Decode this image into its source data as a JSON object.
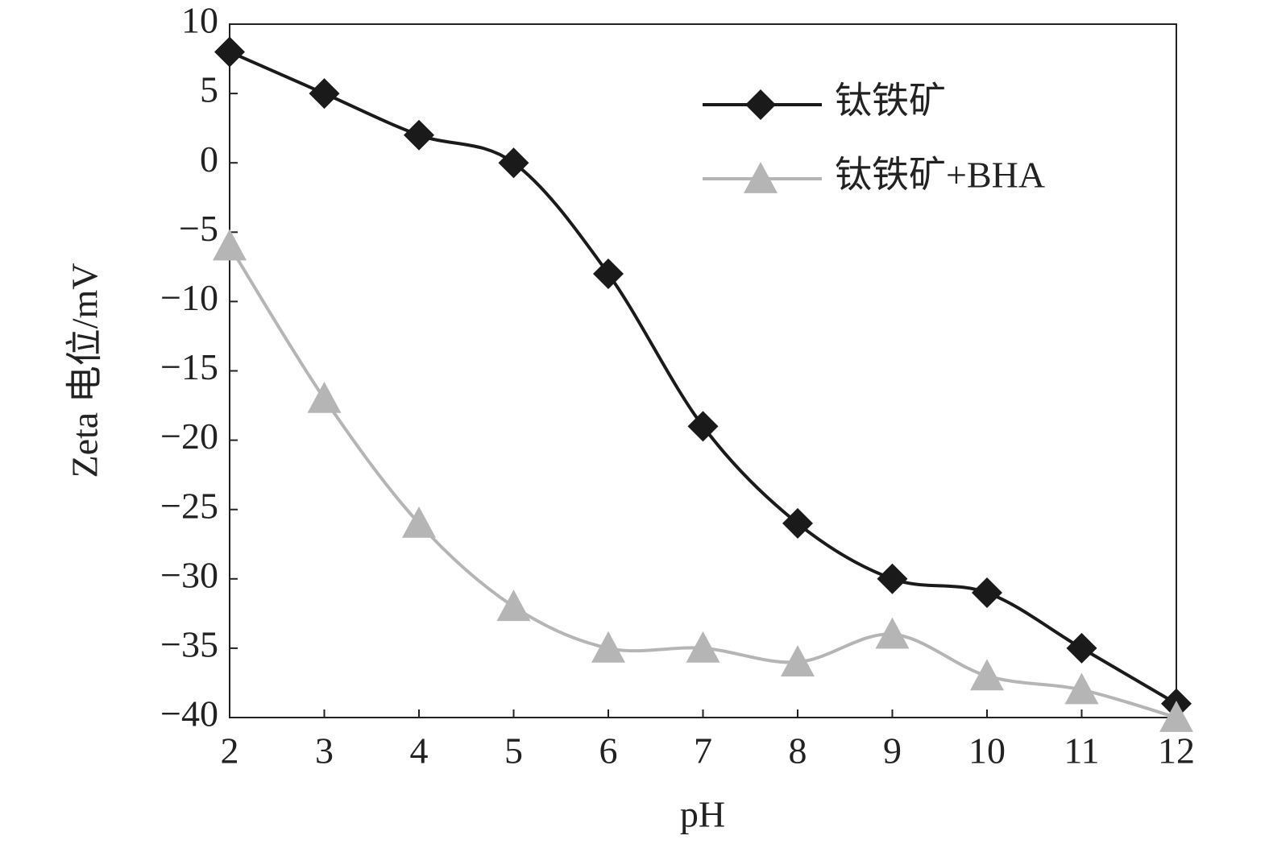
{
  "chart_data": {
    "type": "line",
    "x_label": "pH",
    "y_label": "Zeta 电位/mV",
    "x": [
      2,
      3,
      4,
      5,
      6,
      7,
      8,
      9,
      10,
      11,
      12
    ],
    "series": [
      {
        "name": "钛铁矿",
        "color": "#1a1a1a",
        "marker": "diamond",
        "values": [
          8,
          5,
          2,
          0,
          -8,
          -19,
          -26,
          -30,
          -31,
          -35,
          -39
        ]
      },
      {
        "name": "钛铁矿+BHA",
        "color": "#b5b5b5",
        "marker": "triangle",
        "values": [
          -6,
          -17,
          -26,
          -32,
          -35,
          -35,
          -36,
          -34,
          -37,
          -38,
          -40
        ]
      }
    ],
    "xlim": [
      2,
      12
    ],
    "xticks": [
      2,
      3,
      4,
      5,
      6,
      7,
      8,
      9,
      10,
      11,
      12
    ],
    "ylim": [
      -40,
      10
    ],
    "yticks": [
      10,
      5,
      0,
      {
        "value": -5,
        "label": "−5"
      },
      {
        "value": -10,
        "label": "−10"
      },
      {
        "value": -15,
        "label": "−15"
      },
      {
        "value": -20,
        "label": "−20"
      },
      {
        "value": -25,
        "label": "−25"
      },
      {
        "value": -30,
        "label": "−30"
      },
      {
        "value": -35,
        "label": "−35"
      },
      {
        "value": -40,
        "label": "−40"
      }
    ],
    "legend": "upper right",
    "smooth": true
  }
}
